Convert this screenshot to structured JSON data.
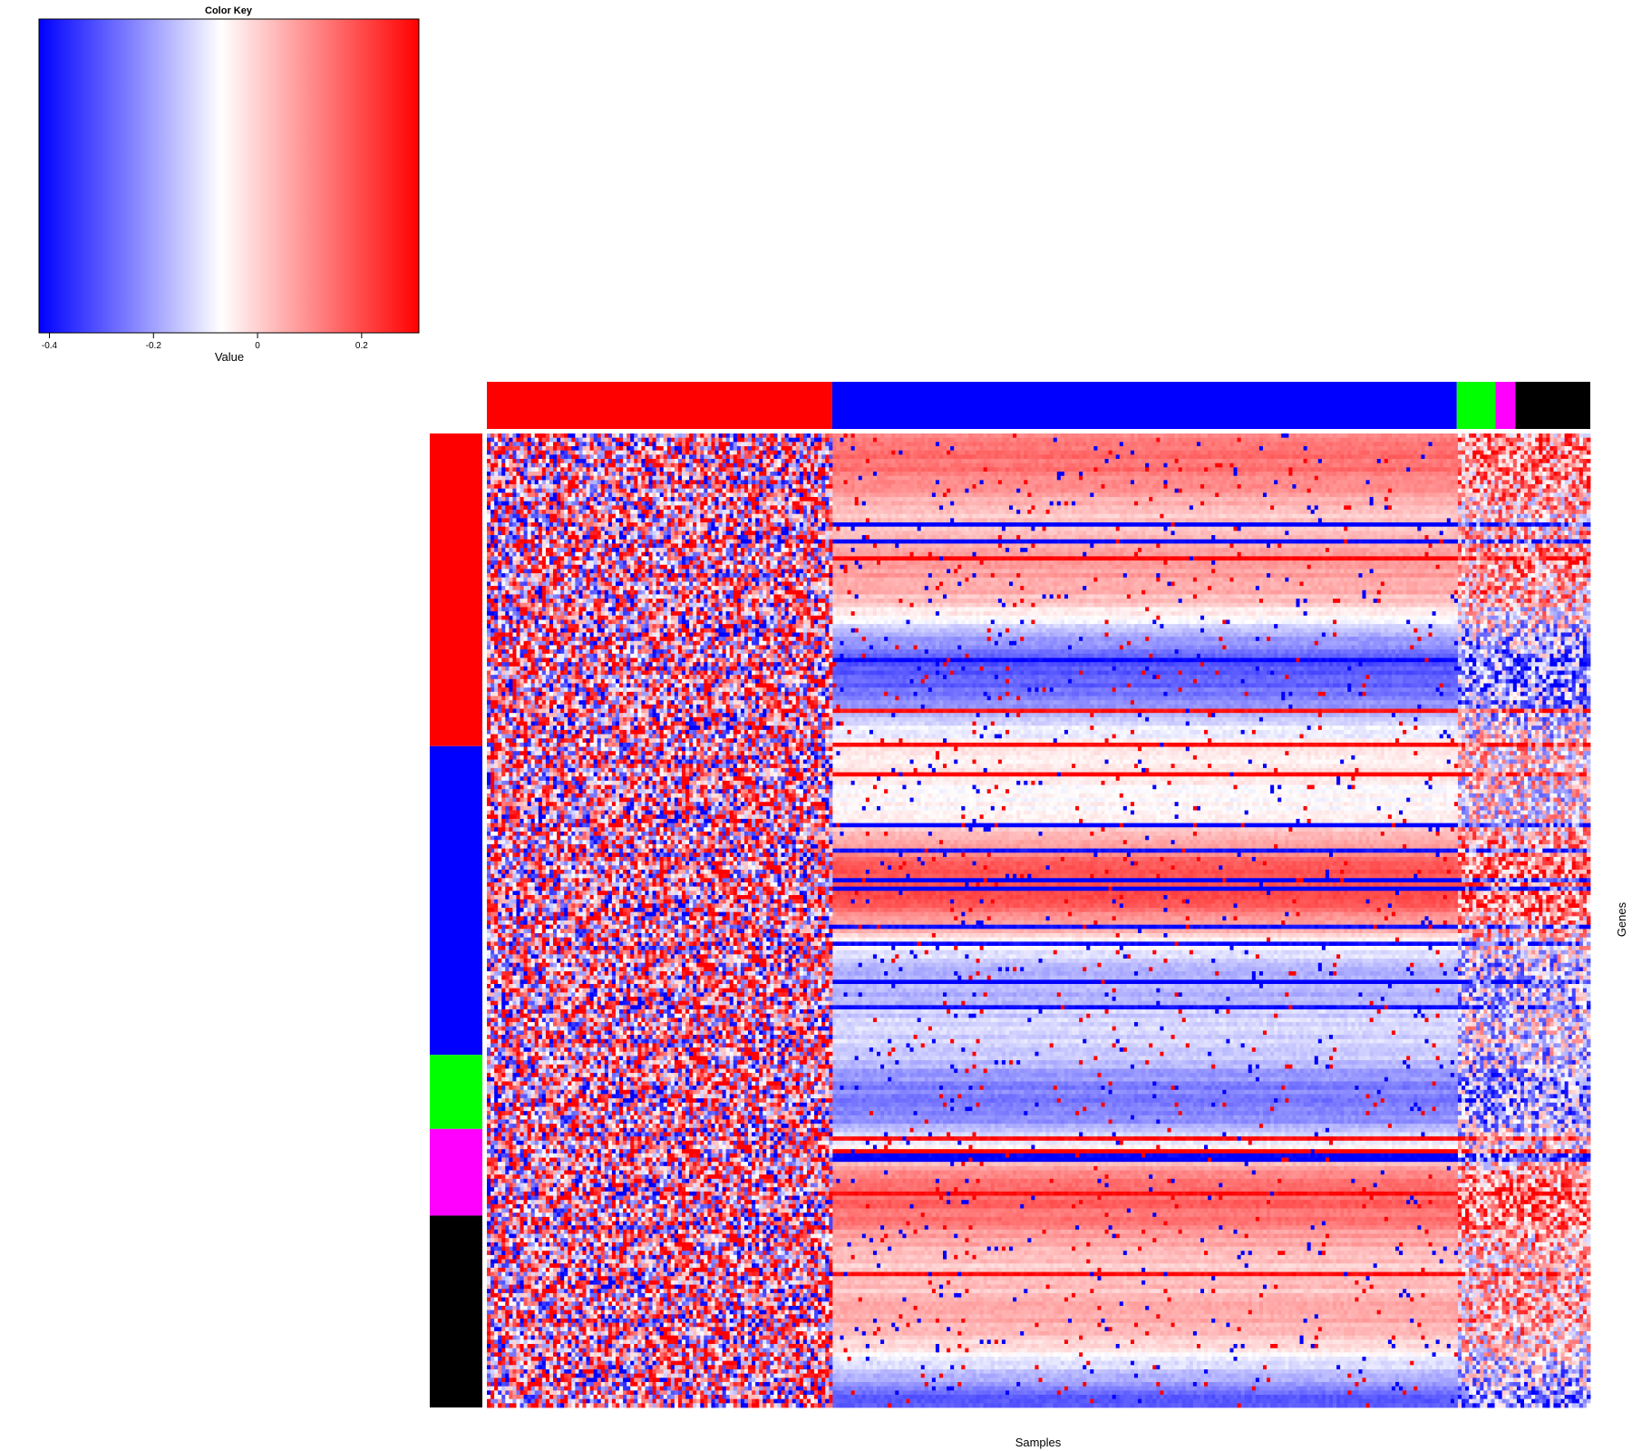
{
  "chart_data": {
    "type": "heatmap",
    "xlabel": "Samples",
    "ylabel": "Genes",
    "color_key": {
      "title": "Color Key",
      "xlabel": "Value",
      "range": [
        -0.42,
        0.31
      ],
      "ticks": [
        {
          "value": -0.4,
          "label": "-0.4"
        },
        {
          "value": -0.2,
          "label": "-0.2"
        },
        {
          "value": 0,
          "label": "0"
        },
        {
          "value": 0.2,
          "label": "0.2"
        }
      ],
      "low_color": "#0000ff",
      "mid_color": "#ffffff",
      "high_color": "#ff0000",
      "mid_value": -0.07
    },
    "column_groups": [
      {
        "color": "#ff0000",
        "fraction": 0.313
      },
      {
        "color": "#0000ff",
        "fraction": 0.566
      },
      {
        "color": "#00ff00",
        "fraction": 0.035
      },
      {
        "color": "#ff00ff",
        "fraction": 0.018
      },
      {
        "color": "#000000",
        "fraction": 0.068
      }
    ],
    "row_groups": [
      {
        "color": "#ff0000",
        "fraction": 0.321
      },
      {
        "color": "#0000ff",
        "fraction": 0.317
      },
      {
        "color": "#00ff00",
        "fraction": 0.076
      },
      {
        "color": "#ff00ff",
        "fraction": 0.089
      },
      {
        "color": "#000000",
        "fraction": 0.197
      }
    ],
    "n_rows": 230,
    "n_cols": 300
  }
}
